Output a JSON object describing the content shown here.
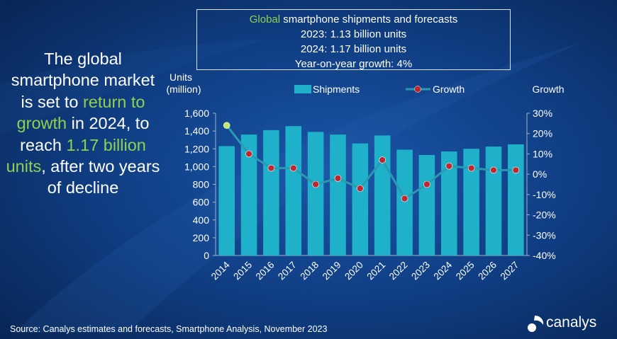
{
  "infobox": {
    "title_highlight": "Global",
    "title_rest": " smartphone shipments and forecasts",
    "line2": "2023: 1.13 billion units",
    "line3": "2024: 1.17 billion units",
    "line4": "Year-on-year growth: 4%"
  },
  "headline": {
    "p1": "The global smartphone market is set to ",
    "h1": "return to growth",
    "p2": " in 2024, to reach ",
    "h2": "1.17 billion units",
    "p3": ", after two years of decline"
  },
  "footer": {
    "source": "Source: Canalys estimates and forecasts, Smartphone Analysis, November 2023",
    "brand": "canalys"
  },
  "colors": {
    "highlight": "#8fd14f",
    "bar": "#1fb1c9",
    "line": "#2a9ab0",
    "point": "#c0262d",
    "point_first": "#c5e86c"
  },
  "chart_data": {
    "type": "bar",
    "categories": [
      "2014",
      "2015",
      "2016",
      "2017",
      "2018",
      "2019",
      "2020",
      "2021",
      "2022",
      "2023",
      "2024",
      "2025",
      "2026",
      "2027"
    ],
    "series": [
      {
        "name": "Shipments",
        "type": "bar",
        "axis": "left",
        "values": [
          1230,
          1360,
          1410,
          1455,
          1390,
          1360,
          1260,
          1350,
          1190,
          1130,
          1170,
          1200,
          1225,
          1250
        ]
      },
      {
        "name": "Growth",
        "type": "line",
        "axis": "right",
        "unit": "%",
        "values": [
          24,
          10,
          3,
          3,
          -5,
          -2,
          -7,
          7,
          -12,
          -5,
          4,
          3,
          2,
          2
        ]
      }
    ],
    "ylabel": "Units (million)",
    "ylabel_lines": [
      "Units",
      "(million)"
    ],
    "ylim": [
      0,
      1600
    ],
    "yticks": [
      "0",
      "200",
      "400",
      "600",
      "800",
      "1,000",
      "1,200",
      "1,400",
      "1,600"
    ],
    "y2label": "Growth",
    "y2lim": [
      -40,
      30
    ],
    "y2ticks": [
      "-40%",
      "-30%",
      "-20%",
      "-10%",
      "0%",
      "10%",
      "20%",
      "30%"
    ],
    "legend": "top",
    "grid": false
  }
}
